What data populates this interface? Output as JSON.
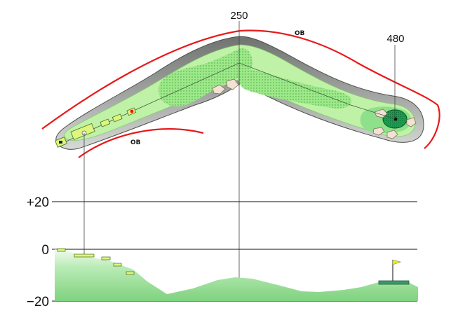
{
  "hole_map": {
    "distance_markers": [
      "250",
      "480"
    ],
    "ob_labels": [
      "OB",
      "OB"
    ],
    "colors": {
      "rough": "#8e928e",
      "fairway_light": "#bff2a6",
      "fairway": "#9ee88a",
      "target_zone": "#5fcf5f",
      "green": "#1a9c4e",
      "tee_box": "#ddf77e",
      "ob_line": "#e8191b",
      "bunker": "#f1e3d3"
    },
    "icons": [
      "tee-marker-icon",
      "ball-icon",
      "red-target-dot-icon",
      "pin-icon",
      "bunker-icon"
    ]
  },
  "elevation_profile": {
    "y_labels": [
      "+20",
      "0",
      "−20"
    ],
    "colors": {
      "profile_fill": "#8fdc8f",
      "tee_step": "#ddf77e",
      "green_base": "#3a9a6a",
      "flag": "#f0f000"
    },
    "icons": [
      "flag-icon"
    ]
  }
}
